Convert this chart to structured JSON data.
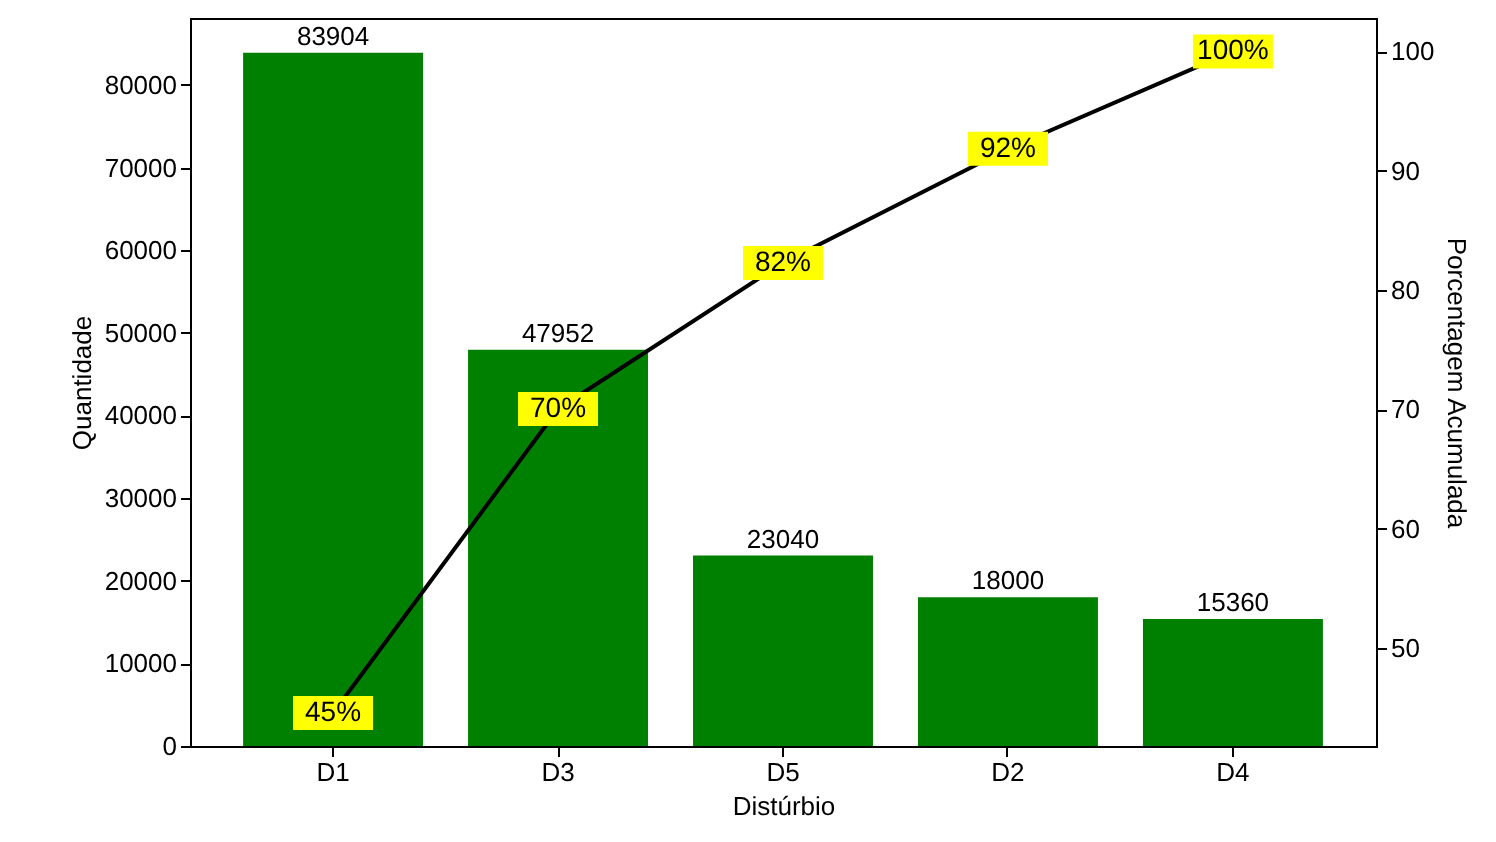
{
  "chart_data": {
    "type": "bar",
    "xlabel": "Distúrbio",
    "ylabel": "Quantidade",
    "y2label": "Porcentagem Acumulada",
    "categories": [
      "D1",
      "D3",
      "D5",
      "D2",
      "D4"
    ],
    "series": [
      {
        "color": "#008000",
        "values": [
          83904,
          47952,
          23040,
          18000,
          15360
        ],
        "value_labels": [
          "83904",
          "47952",
          "23040",
          "18000",
          "15360"
        ]
      },
      {
        "type": "line",
        "axis": "y2",
        "color": "#000000",
        "values": [
          44.57,
          70.04,
          82.28,
          91.84,
          100
        ],
        "value_labels": [
          "45%",
          "70%",
          "82%",
          "92%",
          "100%"
        ]
      }
    ],
    "ylim": [
      0,
      88099
    ],
    "yticks": [
      0,
      10000,
      20000,
      30000,
      40000,
      50000,
      60000,
      70000,
      80000
    ],
    "y2lim": [
      41.8,
      102.8
    ],
    "y2ticks": [
      50,
      60,
      70,
      80,
      90,
      100
    ],
    "line_style": "solid"
  }
}
